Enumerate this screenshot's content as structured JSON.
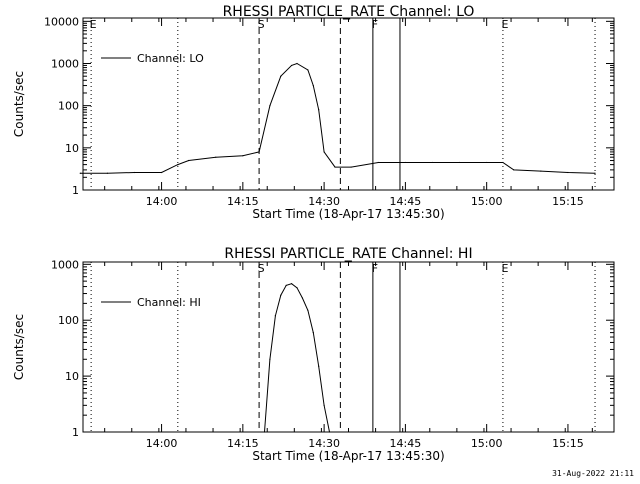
{
  "footer": {
    "timestamp": "31-Aug-2022 21:11"
  },
  "chart_data": [
    {
      "type": "line",
      "title": "RHESSI PARTICLE_RATE Channel: LO",
      "xlabel": "Start Time (18-Apr-17 13:45:30)",
      "ylabel": "Counts/sec",
      "yscale": "log",
      "ylim": [
        1,
        12000
      ],
      "xlim_minutes": [
        0,
        98
      ],
      "x_ticks": [
        "14:00",
        "14:15",
        "14:30",
        "14:45",
        "15:00",
        "15:15"
      ],
      "y_ticks": [
        "1",
        "10",
        "100",
        "1000",
        "10000"
      ],
      "legend": {
        "position": "top-left",
        "entries": [
          "Channel: LO"
        ]
      },
      "markers": [
        {
          "label": "E",
          "style": "dotted",
          "time": "13:47"
        },
        {
          "label": "",
          "style": "dotted",
          "time": "14:03"
        },
        {
          "label": "S",
          "style": "dashed",
          "time": "14:18"
        },
        {
          "label": "",
          "style": "dashed",
          "time": "14:33"
        },
        {
          "label": "F",
          "style": "solid",
          "time": "14:39"
        },
        {
          "label": "",
          "style": "solid",
          "time": "14:44"
        },
        {
          "label": "E",
          "style": "dotted",
          "time": "15:03"
        },
        {
          "label": "",
          "style": "dotted",
          "time": "15:20"
        }
      ],
      "series": [
        {
          "x": [
            "13:45",
            "13:50",
            "13:55",
            "14:00",
            "14:03",
            "14:05",
            "14:10",
            "14:15",
            "14:18",
            "14:20",
            "14:22",
            "14:24",
            "14:25",
            "14:27",
            "14:28",
            "14:29",
            "14:30",
            "14:32",
            "14:35",
            "14:40",
            "14:45",
            "14:50",
            "14:55",
            "15:00",
            "15:03",
            "15:05",
            "15:10",
            "15:15",
            "15:20"
          ],
          "values": [
            2.5,
            2.5,
            2.6,
            2.6,
            4,
            5,
            6,
            6.5,
            8,
            100,
            500,
            900,
            1000,
            700,
            300,
            80,
            8,
            3.5,
            3.5,
            4.5,
            4.5,
            4.5,
            4.5,
            4.5,
            4.5,
            3,
            2.8,
            2.6,
            2.5
          ]
        }
      ]
    },
    {
      "type": "line",
      "title": "RHESSI PARTICLE_RATE Channel: HI",
      "xlabel": "Start Time (18-Apr-17 13:45:30)",
      "ylabel": "Counts/sec",
      "yscale": "log",
      "ylim": [
        1,
        1100
      ],
      "xlim_minutes": [
        0,
        98
      ],
      "x_ticks": [
        "14:00",
        "14:15",
        "14:30",
        "14:45",
        "15:00",
        "15:15"
      ],
      "y_ticks": [
        "1",
        "10",
        "100",
        "1000"
      ],
      "legend": {
        "position": "top-left",
        "entries": [
          "Channel: HI"
        ]
      },
      "markers": [
        {
          "label": "",
          "style": "dotted",
          "time": "13:47"
        },
        {
          "label": "",
          "style": "dotted",
          "time": "14:03"
        },
        {
          "label": "S",
          "style": "dashed",
          "time": "14:18"
        },
        {
          "label": "",
          "style": "dashed",
          "time": "14:33"
        },
        {
          "label": "F",
          "style": "solid",
          "time": "14:39"
        },
        {
          "label": "",
          "style": "solid",
          "time": "14:44"
        },
        {
          "label": "E",
          "style": "dotted",
          "time": "15:03"
        },
        {
          "label": "",
          "style": "dotted",
          "time": "15:20"
        }
      ],
      "series": [
        {
          "x": [
            "14:19",
            "14:20",
            "14:21",
            "14:22",
            "14:23",
            "14:24",
            "14:25",
            "14:26",
            "14:27",
            "14:28",
            "14:29",
            "14:30",
            "14:31"
          ],
          "values": [
            1,
            20,
            120,
            280,
            420,
            450,
            380,
            250,
            150,
            60,
            15,
            3,
            1
          ]
        }
      ]
    }
  ]
}
